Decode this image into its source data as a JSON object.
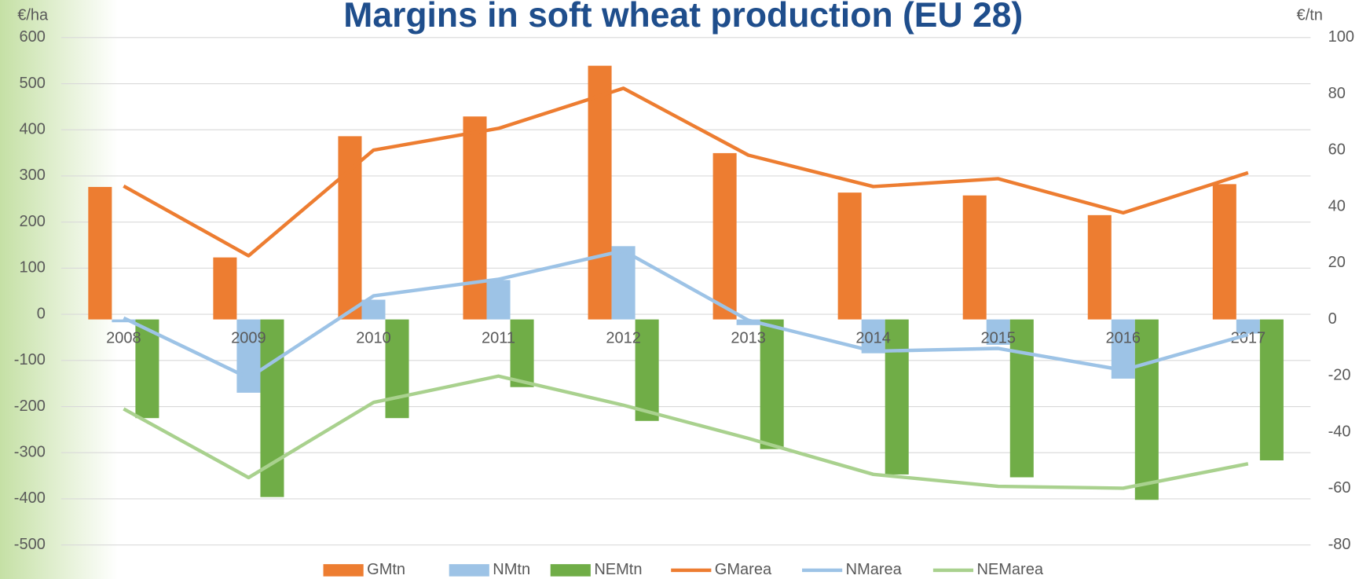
{
  "chart_data": {
    "type": "bar",
    "title": "Margins in soft wheat production (EU 28)",
    "y_label": "€/ha",
    "y2_label": "€/tn",
    "categories": [
      "2008",
      "2009",
      "2010",
      "2011",
      "2012",
      "2013",
      "2014",
      "2015",
      "2016",
      "2017"
    ],
    "ylim": [
      -500,
      600
    ],
    "yticks": [
      -500,
      -400,
      -300,
      -200,
      -100,
      0,
      100,
      200,
      300,
      400,
      500,
      600
    ],
    "y2lim": [
      -80,
      100
    ],
    "y2ticks": [
      -80,
      -60,
      -40,
      -20,
      0,
      20,
      40,
      60,
      80,
      100
    ],
    "grid": true,
    "legend": "bottom",
    "series": [
      {
        "name": "GMtn",
        "type": "bar",
        "axis": "y2",
        "color": "#ed7d31",
        "values": [
          47,
          22,
          65,
          72,
          90,
          59,
          45,
          44,
          37,
          48
        ]
      },
      {
        "name": "NMtn",
        "type": "bar",
        "axis": "y2",
        "color": "#9dc3e6",
        "values": [
          -1,
          -26,
          7,
          14,
          26,
          -2,
          -12,
          -9,
          -21,
          -5
        ]
      },
      {
        "name": "NEMtn",
        "type": "bar",
        "axis": "y2",
        "color": "#70ad47",
        "values": [
          -35,
          -63,
          -35,
          -24,
          -36,
          -46,
          -55,
          -56,
          -64,
          -50
        ]
      },
      {
        "name": "GMarea",
        "type": "line",
        "axis": "y",
        "color": "#ed7d31",
        "values": [
          278,
          127,
          356,
          403,
          490,
          345,
          277,
          294,
          220,
          307
        ]
      },
      {
        "name": "NMarea",
        "type": "line",
        "axis": "y",
        "color": "#9dc3e6",
        "values": [
          -8,
          -138,
          40,
          76,
          138,
          -13,
          -80,
          -74,
          -121,
          -44
        ]
      },
      {
        "name": "NEMarea",
        "type": "line",
        "axis": "y",
        "color": "#a9d18e",
        "values": [
          -205,
          -354,
          -191,
          -134,
          -197,
          -269,
          -347,
          -373,
          -377,
          -324
        ]
      }
    ]
  }
}
